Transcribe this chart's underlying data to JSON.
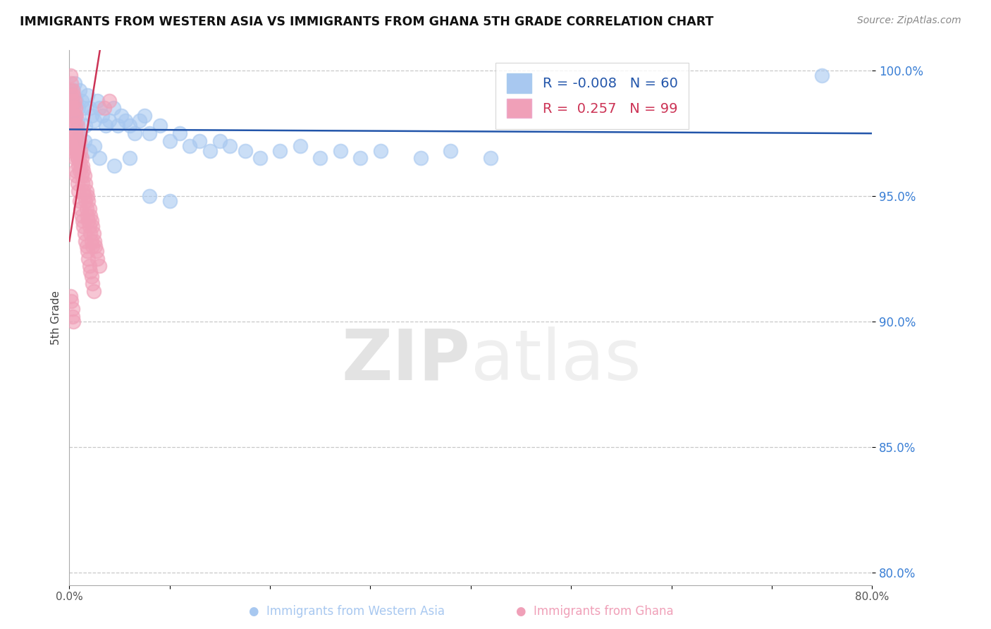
{
  "title": "IMMIGRANTS FROM WESTERN ASIA VS IMMIGRANTS FROM GHANA 5TH GRADE CORRELATION CHART",
  "source": "Source: ZipAtlas.com",
  "ylabel": "5th Grade",
  "xlim": [
    0.0,
    0.8
  ],
  "ylim": [
    0.795,
    1.008
  ],
  "yticks": [
    0.8,
    0.85,
    0.9,
    0.95,
    1.0
  ],
  "ytick_labels": [
    "80.0%",
    "85.0%",
    "90.0%",
    "95.0%",
    "100.0%"
  ],
  "xticks": [
    0.0,
    0.1,
    0.2,
    0.3,
    0.4,
    0.5,
    0.6,
    0.7,
    0.8
  ],
  "xtick_labels": [
    "0.0%",
    "",
    "",
    "",
    "",
    "",
    "",
    "",
    "80.0%"
  ],
  "legend_blue_r": "-0.008",
  "legend_blue_n": "60",
  "legend_pink_r": "0.257",
  "legend_pink_n": "99",
  "blue_color": "#a8c8f0",
  "pink_color": "#f0a0b8",
  "blue_line_color": "#2255aa",
  "pink_line_color": "#cc3355",
  "blue_scatter_x": [
    0.001,
    0.002,
    0.003,
    0.004,
    0.005,
    0.006,
    0.007,
    0.008,
    0.009,
    0.01,
    0.012,
    0.014,
    0.016,
    0.018,
    0.02,
    0.022,
    0.025,
    0.028,
    0.03,
    0.033,
    0.036,
    0.04,
    0.044,
    0.048,
    0.052,
    0.056,
    0.06,
    0.065,
    0.07,
    0.075,
    0.08,
    0.09,
    0.1,
    0.11,
    0.12,
    0.13,
    0.14,
    0.15,
    0.16,
    0.175,
    0.19,
    0.21,
    0.23,
    0.25,
    0.27,
    0.29,
    0.31,
    0.35,
    0.38,
    0.42,
    0.01,
    0.015,
    0.02,
    0.025,
    0.03,
    0.045,
    0.06,
    0.08,
    0.1,
    0.75
  ],
  "blue_scatter_y": [
    0.99,
    0.985,
    0.988,
    0.992,
    0.995,
    0.982,
    0.988,
    0.98,
    0.985,
    0.992,
    0.988,
    0.985,
    0.978,
    0.99,
    0.985,
    0.982,
    0.98,
    0.988,
    0.985,
    0.982,
    0.978,
    0.98,
    0.985,
    0.978,
    0.982,
    0.98,
    0.978,
    0.975,
    0.98,
    0.982,
    0.975,
    0.978,
    0.972,
    0.975,
    0.97,
    0.972,
    0.968,
    0.972,
    0.97,
    0.968,
    0.965,
    0.968,
    0.97,
    0.965,
    0.968,
    0.965,
    0.968,
    0.965,
    0.968,
    0.965,
    0.975,
    0.972,
    0.968,
    0.97,
    0.965,
    0.962,
    0.965,
    0.95,
    0.948,
    0.998
  ],
  "pink_scatter_x": [
    0.001,
    0.001,
    0.002,
    0.002,
    0.002,
    0.003,
    0.003,
    0.003,
    0.004,
    0.004,
    0.004,
    0.005,
    0.005,
    0.005,
    0.006,
    0.006,
    0.006,
    0.007,
    0.007,
    0.007,
    0.008,
    0.008,
    0.008,
    0.009,
    0.009,
    0.01,
    0.01,
    0.01,
    0.011,
    0.011,
    0.012,
    0.012,
    0.013,
    0.013,
    0.014,
    0.014,
    0.015,
    0.015,
    0.016,
    0.016,
    0.017,
    0.017,
    0.018,
    0.018,
    0.019,
    0.019,
    0.02,
    0.02,
    0.021,
    0.021,
    0.022,
    0.022,
    0.023,
    0.023,
    0.024,
    0.025,
    0.026,
    0.027,
    0.028,
    0.03,
    0.002,
    0.003,
    0.004,
    0.005,
    0.006,
    0.007,
    0.008,
    0.009,
    0.01,
    0.011,
    0.012,
    0.013,
    0.014,
    0.015,
    0.016,
    0.017,
    0.018,
    0.019,
    0.02,
    0.021,
    0.022,
    0.023,
    0.024,
    0.001,
    0.002,
    0.003,
    0.004,
    0.005,
    0.006,
    0.007,
    0.008,
    0.009,
    0.035,
    0.04,
    0.001,
    0.002,
    0.003,
    0.003,
    0.004
  ],
  "pink_scatter_y": [
    0.998,
    0.992,
    0.995,
    0.99,
    0.985,
    0.992,
    0.988,
    0.982,
    0.985,
    0.99,
    0.978,
    0.988,
    0.982,
    0.975,
    0.985,
    0.978,
    0.972,
    0.982,
    0.975,
    0.968,
    0.978,
    0.972,
    0.965,
    0.975,
    0.968,
    0.972,
    0.965,
    0.96,
    0.968,
    0.962,
    0.965,
    0.958,
    0.962,
    0.955,
    0.96,
    0.952,
    0.958,
    0.95,
    0.955,
    0.948,
    0.952,
    0.945,
    0.95,
    0.942,
    0.948,
    0.94,
    0.945,
    0.938,
    0.942,
    0.935,
    0.94,
    0.932,
    0.938,
    0.93,
    0.935,
    0.932,
    0.93,
    0.928,
    0.925,
    0.922,
    0.97,
    0.968,
    0.972,
    0.965,
    0.96,
    0.958,
    0.955,
    0.952,
    0.948,
    0.945,
    0.942,
    0.94,
    0.938,
    0.935,
    0.932,
    0.93,
    0.928,
    0.925,
    0.922,
    0.92,
    0.918,
    0.915,
    0.912,
    0.988,
    0.985,
    0.982,
    0.978,
    0.975,
    0.972,
    0.968,
    0.965,
    0.962,
    0.985,
    0.988,
    0.91,
    0.908,
    0.905,
    0.902,
    0.9
  ]
}
